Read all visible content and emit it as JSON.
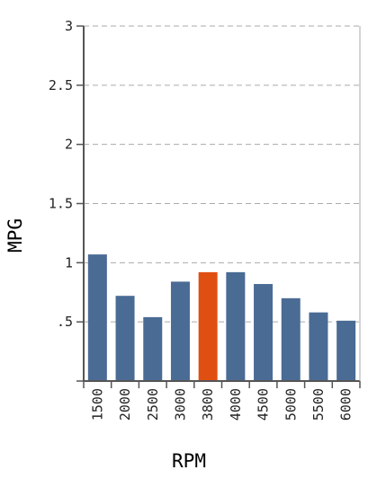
{
  "chart_data": {
    "type": "bar",
    "xlabel": "RPM",
    "ylabel": "MPG",
    "categories": [
      "1500",
      "2000",
      "2500",
      "3000",
      "3800",
      "4000",
      "4500",
      "5000",
      "5500",
      "6000"
    ],
    "values": [
      1.07,
      0.72,
      0.54,
      0.84,
      0.92,
      0.92,
      0.82,
      0.7,
      0.58,
      0.51
    ],
    "highlight_index": 4,
    "ylim": [
      0,
      3
    ],
    "yticks": [
      0,
      0.5,
      1,
      1.5,
      2,
      2.5,
      3
    ],
    "ytick_labels": [
      "",
      ".5",
      "1",
      "1.5",
      "2",
      "2.5",
      "3"
    ],
    "grid": true,
    "colors": {
      "bar": "#4a6b94",
      "highlight": "#e04f12",
      "grid": "#aaaaaa",
      "axis": "#555555"
    }
  }
}
